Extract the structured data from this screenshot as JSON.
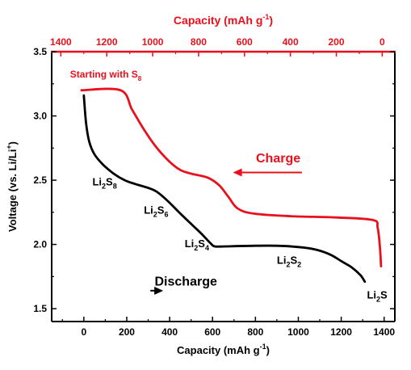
{
  "colors": {
    "discharge": "#000000",
    "charge": "#e8101c",
    "axis": "#000000"
  },
  "chart_data": {
    "type": "line",
    "xlabel_bottom": {
      "text": "Capacity (mAh g",
      "sup": "-1",
      "close": ")"
    },
    "xlabel_top": {
      "text": "Capacity (mAh g",
      "sup": "-1",
      "close": ")"
    },
    "ylabel": {
      "text": "Voltage (vs. Li/Li",
      "sup": "+",
      "close": ")"
    },
    "bottom_axis": {
      "range": [
        -150,
        1450
      ],
      "ticks": [
        0,
        200,
        400,
        600,
        800,
        1000,
        1200,
        1400
      ],
      "tick_labels": [
        "0",
        "200",
        "400",
        "600",
        "800",
        "1000",
        "1200",
        "1400"
      ]
    },
    "top_axis": {
      "range": [
        1440,
        -55
      ],
      "ticks": [
        1400,
        1200,
        1000,
        800,
        600,
        400,
        200,
        0
      ],
      "tick_labels": [
        "1400",
        "1200",
        "1000",
        "800",
        "600",
        "400",
        "200",
        "0"
      ]
    },
    "y_axis": {
      "range": [
        1.4,
        3.5
      ],
      "ticks": [
        1.5,
        2.0,
        2.5,
        3.0,
        3.5
      ],
      "tick_labels": [
        "1.5",
        "2.0",
        "2.5",
        "3.0",
        "3.5"
      ]
    },
    "grid": false,
    "series": [
      {
        "name": "Discharge",
        "axis": "bottom",
        "points": [
          [
            0,
            3.16
          ],
          [
            10,
            2.95
          ],
          [
            25,
            2.8
          ],
          [
            50,
            2.7
          ],
          [
            90,
            2.62
          ],
          [
            140,
            2.55
          ],
          [
            190,
            2.5
          ],
          [
            240,
            2.47
          ],
          [
            300,
            2.44
          ],
          [
            340,
            2.41
          ],
          [
            390,
            2.34
          ],
          [
            450,
            2.24
          ],
          [
            500,
            2.16
          ],
          [
            550,
            2.08
          ],
          [
            590,
            2.01
          ],
          [
            610,
            1.985
          ],
          [
            660,
            1.985
          ],
          [
            800,
            1.99
          ],
          [
            900,
            1.99
          ],
          [
            1000,
            1.98
          ],
          [
            1080,
            1.96
          ],
          [
            1150,
            1.92
          ],
          [
            1200,
            1.87
          ],
          [
            1250,
            1.82
          ],
          [
            1290,
            1.76
          ],
          [
            1310,
            1.71
          ]
        ]
      },
      {
        "name": "Charge",
        "axis": "top",
        "points": [
          [
            1310,
            3.2
          ],
          [
            1140,
            3.2
          ],
          [
            1090,
            3.05
          ],
          [
            1040,
            2.9
          ],
          [
            990,
            2.77
          ],
          [
            930,
            2.65
          ],
          [
            880,
            2.58
          ],
          [
            830,
            2.55
          ],
          [
            760,
            2.52
          ],
          [
            710,
            2.46
          ],
          [
            670,
            2.37
          ],
          [
            630,
            2.28
          ],
          [
            560,
            2.24
          ],
          [
            400,
            2.22
          ],
          [
            200,
            2.21
          ],
          [
            40,
            2.19
          ],
          [
            20,
            2.13
          ],
          [
            10,
            1.98
          ],
          [
            5,
            1.83
          ]
        ]
      }
    ],
    "annotations": [
      {
        "text": "Starting with S",
        "sub": "8",
        "value_x": 1360,
        "value_y": 3.3,
        "axis": "top",
        "color": "charge"
      },
      {
        "text": "Charge",
        "value_x": 550,
        "value_y": 2.64,
        "axis": "top",
        "color": "charge"
      },
      {
        "text": "Discharge",
        "value_x": 330,
        "value_y": 1.68,
        "axis": "bottom",
        "color": "discharge"
      }
    ],
    "arrows": [
      {
        "series": "Charge",
        "from": [
          350,
          2.56
        ],
        "to": [
          650,
          2.56
        ],
        "axis": "top"
      },
      {
        "series": "Discharge",
        "from": [
          310,
          1.64
        ],
        "to": [
          370,
          1.64
        ],
        "axis": "bottom"
      }
    ],
    "phase_labels": [
      {
        "base": "Li",
        "sub1": "2",
        "mid": "S",
        "sub2": "8",
        "value_x": 40,
        "value_y": 2.46
      },
      {
        "base": "Li",
        "sub1": "2",
        "mid": "S",
        "sub2": "6",
        "value_x": 280,
        "value_y": 2.24
      },
      {
        "base": "Li",
        "sub1": "2",
        "mid": "S",
        "sub2": "4",
        "value_x": 470,
        "value_y": 1.98
      },
      {
        "base": "Li",
        "sub1": "2",
        "mid": "S",
        "sub2": "2",
        "value_x": 900,
        "value_y": 1.85
      },
      {
        "base": "Li",
        "sub1": "2",
        "mid": "S",
        "sub2": "",
        "value_x": 1320,
        "value_y": 1.58
      }
    ]
  }
}
